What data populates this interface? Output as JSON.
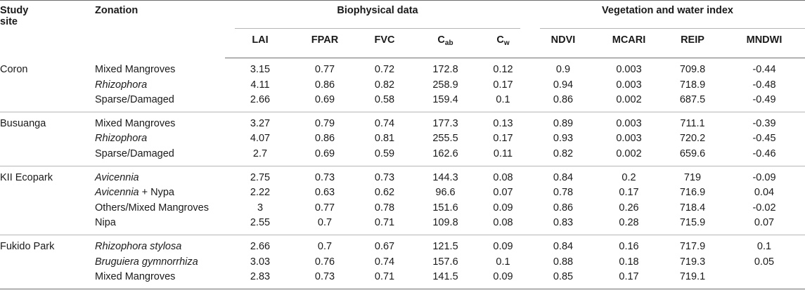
{
  "headers": {
    "study_site_l1": "Study",
    "study_site_l2": "site",
    "zonation": "Zonation",
    "group_biophysical": "Biophysical data",
    "group_index": "Vegetation and water index",
    "cols": [
      {
        "main": "LAI",
        "sub": ""
      },
      {
        "main": "FPAR",
        "sub": ""
      },
      {
        "main": "FVC",
        "sub": ""
      },
      {
        "main": "C",
        "sub": "ab"
      },
      {
        "main": "C",
        "sub": "w"
      },
      {
        "main": "NDVI",
        "sub": ""
      },
      {
        "main": "MCARI",
        "sub": ""
      },
      {
        "main": "REIP",
        "sub": ""
      },
      {
        "main": "MNDWI",
        "sub": ""
      }
    ]
  },
  "groups": [
    {
      "site": "Coron",
      "rows": [
        {
          "zone": [
            {
              "t": "Mixed Mangroves",
              "i": false
            }
          ],
          "values": [
            "3.15",
            "0.77",
            "0.72",
            "172.8",
            "0.12",
            "0.9",
            "0.003",
            "709.8",
            "-0.44"
          ]
        },
        {
          "zone": [
            {
              "t": "Rhizophora",
              "i": true
            }
          ],
          "values": [
            "4.11",
            "0.86",
            "0.82",
            "258.9",
            "0.17",
            "0.94",
            "0.003",
            "718.9",
            "-0.48"
          ]
        },
        {
          "zone": [
            {
              "t": "Sparse/Damaged",
              "i": false
            }
          ],
          "values": [
            "2.66",
            "0.69",
            "0.58",
            "159.4",
            "0.1",
            "0.86",
            "0.002",
            "687.5",
            "-0.49"
          ]
        }
      ]
    },
    {
      "site": "Busuanga",
      "rows": [
        {
          "zone": [
            {
              "t": "Mixed Mangroves",
              "i": false
            }
          ],
          "values": [
            "3.27",
            "0.79",
            "0.74",
            "177.3",
            "0.13",
            "0.89",
            "0.003",
            "711.1",
            "-0.39"
          ]
        },
        {
          "zone": [
            {
              "t": "Rhizophora",
              "i": true
            }
          ],
          "values": [
            "4.07",
            "0.86",
            "0.81",
            "255.5",
            "0.17",
            "0.93",
            "0.003",
            "720.2",
            "-0.45"
          ]
        },
        {
          "zone": [
            {
              "t": "Sparse/Damaged",
              "i": false
            }
          ],
          "values": [
            "2.7",
            "0.69",
            "0.59",
            "162.6",
            "0.11",
            "0.82",
            "0.002",
            "659.6",
            "-0.46"
          ]
        }
      ]
    },
    {
      "site": "KII Ecopark",
      "rows": [
        {
          "zone": [
            {
              "t": "Avicennia",
              "i": true
            }
          ],
          "values": [
            "2.75",
            "0.73",
            "0.73",
            "144.3",
            "0.08",
            "0.84",
            "0.2",
            "719",
            "-0.09"
          ]
        },
        {
          "zone": [
            {
              "t": "Avicennia",
              "i": true
            },
            {
              "t": " + Nypa",
              "i": false
            }
          ],
          "values": [
            "2.22",
            "0.63",
            "0.62",
            "96.6",
            "0.07",
            "0.78",
            "0.17",
            "716.9",
            "0.04"
          ]
        },
        {
          "zone": [
            {
              "t": "Others/Mixed Mangroves",
              "i": false
            }
          ],
          "values": [
            "3",
            "0.77",
            "0.78",
            "151.6",
            "0.09",
            "0.86",
            "0.26",
            "718.4",
            "-0.02"
          ]
        },
        {
          "zone": [
            {
              "t": "Nipa",
              "i": false
            }
          ],
          "values": [
            "2.55",
            "0.7",
            "0.71",
            "109.8",
            "0.08",
            "0.83",
            "0.28",
            "715.9",
            "0.07"
          ]
        }
      ]
    },
    {
      "site": "Fukido Park",
      "rows": [
        {
          "zone": [
            {
              "t": "Rhizophora stylosa",
              "i": true
            }
          ],
          "values": [
            "2.66",
            "0.7",
            "0.67",
            "121.5",
            "0.09",
            "0.84",
            "0.16",
            "717.9",
            "0.1"
          ]
        },
        {
          "zone": [
            {
              "t": "Bruguiera gymnorrhiza",
              "i": true
            }
          ],
          "values": [
            "3.03",
            "0.76",
            "0.74",
            "157.6",
            "0.1",
            "0.88",
            "0.18",
            "719.3",
            "0.05"
          ]
        },
        {
          "zone": [
            {
              "t": "Mixed Mangroves",
              "i": false
            }
          ],
          "values": [
            "2.83",
            "0.73",
            "0.71",
            "141.5",
            "0.09",
            "0.85",
            "0.17",
            "719.1",
            ""
          ]
        }
      ]
    }
  ]
}
